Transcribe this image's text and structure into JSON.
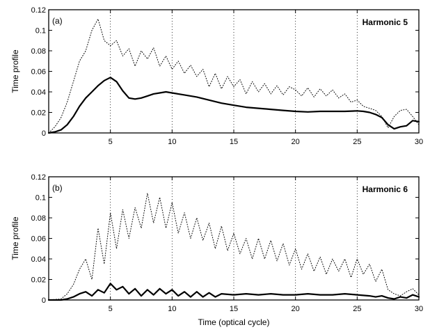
{
  "chart_data": [
    {
      "type": "line",
      "panel_label": "(a)",
      "annotation": "Harmonic 5",
      "ylabel": "Time profile",
      "xlabel": "",
      "xlim": [
        0,
        30
      ],
      "ylim": [
        0,
        0.12
      ],
      "xticks": [
        5,
        10,
        15,
        20,
        25,
        30
      ],
      "yticks": [
        0,
        0.02,
        0.04,
        0.06,
        0.08,
        0.1,
        0.12
      ],
      "ytick_labels": [
        "0",
        "0.02",
        "0.04",
        "0.06",
        "0.08",
        "0.1",
        "0.12"
      ],
      "grid": "vertical dotted lines at x ticks",
      "series": [
        {
          "style": "solid",
          "x": [
            0,
            0.5,
            1,
            1.5,
            2,
            2.5,
            3,
            3.5,
            4,
            4.5,
            5,
            5.5,
            6,
            6.5,
            7,
            7.5,
            8,
            8.5,
            9,
            9.5,
            10,
            11,
            12,
            13,
            14,
            15,
            16,
            17,
            18,
            19,
            20,
            21,
            22,
            23,
            24,
            25,
            25.5,
            26,
            26.5,
            27,
            27.5,
            28,
            28.5,
            29,
            29.5,
            30
          ],
          "y": [
            0,
            0.001,
            0.003,
            0.008,
            0.016,
            0.026,
            0.034,
            0.04,
            0.046,
            0.051,
            0.054,
            0.05,
            0.041,
            0.034,
            0.033,
            0.034,
            0.036,
            0.038,
            0.039,
            0.04,
            0.039,
            0.037,
            0.035,
            0.032,
            0.029,
            0.027,
            0.025,
            0.024,
            0.023,
            0.022,
            0.021,
            0.0205,
            0.021,
            0.021,
            0.021,
            0.0215,
            0.021,
            0.02,
            0.018,
            0.015,
            0.008,
            0.004,
            0.006,
            0.007,
            0.012,
            0.011
          ]
        },
        {
          "style": "dotted",
          "x": [
            0,
            0.5,
            1,
            1.5,
            2,
            2.5,
            3,
            3.5,
            4,
            4.5,
            5,
            5.5,
            6,
            6.5,
            7,
            7.5,
            8,
            8.5,
            9,
            9.5,
            10,
            10.5,
            11,
            11.5,
            12,
            12.5,
            13,
            13.5,
            14,
            14.5,
            15,
            15.5,
            16,
            16.5,
            17,
            17.5,
            18,
            18.5,
            19,
            19.5,
            20,
            20.5,
            21,
            21.5,
            22,
            22.5,
            23,
            23.5,
            24,
            24.5,
            25,
            25.5,
            26,
            26.5,
            27,
            27.5,
            28,
            28.5,
            29,
            29.5,
            30
          ],
          "y": [
            0,
            0.006,
            0.015,
            0.03,
            0.05,
            0.07,
            0.08,
            0.1,
            0.111,
            0.09,
            0.085,
            0.09,
            0.075,
            0.082,
            0.065,
            0.08,
            0.072,
            0.083,
            0.065,
            0.075,
            0.062,
            0.07,
            0.058,
            0.066,
            0.055,
            0.062,
            0.045,
            0.058,
            0.043,
            0.055,
            0.045,
            0.052,
            0.038,
            0.05,
            0.04,
            0.048,
            0.038,
            0.046,
            0.037,
            0.045,
            0.042,
            0.036,
            0.044,
            0.035,
            0.043,
            0.036,
            0.042,
            0.034,
            0.038,
            0.03,
            0.032,
            0.026,
            0.024,
            0.022,
            0.016,
            0.005,
            0.016,
            0.022,
            0.023,
            0.016,
            0.008
          ]
        }
      ]
    },
    {
      "type": "line",
      "panel_label": "(b)",
      "annotation": "Harmonic 6",
      "ylabel": "Time profile",
      "xlabel": "Time (optical cycle)",
      "xlim": [
        0,
        30
      ],
      "ylim": [
        0,
        0.12
      ],
      "xticks": [
        5,
        10,
        15,
        20,
        25,
        30
      ],
      "yticks": [
        0,
        0.02,
        0.04,
        0.06,
        0.08,
        0.1,
        0.12
      ],
      "ytick_labels": [
        "0",
        "0.02",
        "0.04",
        "0.06",
        "0.08",
        "0.1",
        "0.12"
      ],
      "grid": "vertical dotted lines at x ticks",
      "series": [
        {
          "style": "solid",
          "x": [
            0,
            1,
            1.5,
            2,
            2.5,
            3,
            3.5,
            4,
            4.5,
            5,
            5.5,
            6,
            6.5,
            7,
            7.5,
            8,
            8.5,
            9,
            9.5,
            10,
            10.5,
            11,
            11.5,
            12,
            12.5,
            13,
            13.5,
            14,
            15,
            16,
            17,
            18,
            19,
            20,
            21,
            22,
            23,
            24,
            25,
            26,
            26.5,
            27,
            27.5,
            28,
            28.5,
            29,
            29.5,
            30
          ],
          "y": [
            0,
            0,
            0.001,
            0.003,
            0.006,
            0.008,
            0.004,
            0.01,
            0.007,
            0.016,
            0.01,
            0.013,
            0.006,
            0.011,
            0.004,
            0.01,
            0.005,
            0.011,
            0.006,
            0.01,
            0.004,
            0.008,
            0.003,
            0.008,
            0.003,
            0.007,
            0.003,
            0.006,
            0.005,
            0.006,
            0.005,
            0.006,
            0.005,
            0.005,
            0.006,
            0.005,
            0.005,
            0.006,
            0.005,
            0.004,
            0.003,
            0.004,
            0.002,
            0.001,
            0.003,
            0.002,
            0.005,
            0.003
          ]
        },
        {
          "style": "dotted",
          "x": [
            0,
            1,
            1.5,
            2,
            2.5,
            3,
            3.5,
            4,
            4.5,
            5,
            5.5,
            6,
            6.5,
            7,
            7.5,
            8,
            8.5,
            9,
            9.5,
            10,
            10.5,
            11,
            11.5,
            12,
            12.5,
            13,
            13.5,
            14,
            14.5,
            15,
            15.5,
            16,
            16.5,
            17,
            17.5,
            18,
            18.5,
            19,
            19.5,
            20,
            20.5,
            21,
            21.5,
            22,
            22.5,
            23,
            23.5,
            24,
            24.5,
            25,
            25.5,
            26,
            26.5,
            27,
            27.5,
            28,
            28.5,
            29,
            29.5,
            30
          ],
          "y": [
            0,
            0.001,
            0.006,
            0.015,
            0.03,
            0.04,
            0.02,
            0.07,
            0.035,
            0.085,
            0.05,
            0.088,
            0.06,
            0.09,
            0.07,
            0.104,
            0.075,
            0.1,
            0.07,
            0.095,
            0.065,
            0.085,
            0.06,
            0.08,
            0.058,
            0.075,
            0.05,
            0.072,
            0.048,
            0.065,
            0.045,
            0.06,
            0.04,
            0.06,
            0.04,
            0.058,
            0.038,
            0.055,
            0.034,
            0.05,
            0.03,
            0.045,
            0.028,
            0.042,
            0.025,
            0.04,
            0.028,
            0.04,
            0.022,
            0.04,
            0.025,
            0.035,
            0.018,
            0.03,
            0.01,
            0.006,
            0.004,
            0.008,
            0.011,
            0.005
          ]
        }
      ]
    }
  ]
}
